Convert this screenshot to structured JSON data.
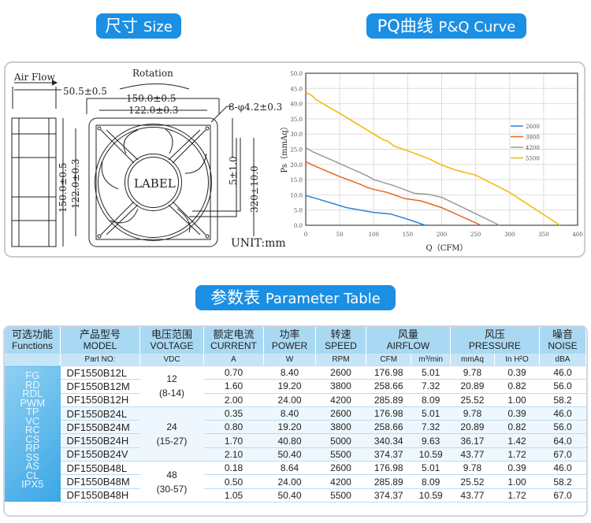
{
  "titles": {
    "size_cn": "尺寸",
    "size_en": "Size",
    "pq_cn": "PQ曲线",
    "pq_en": "P&Q Curve",
    "table_cn": "参数表",
    "table_en": "Parameter Table"
  },
  "drawing": {
    "air_flow": "Air Flow",
    "rotation": "Rotation",
    "depth": "50.5±0.5",
    "width_outer": "150.0±0.5",
    "width_hole": "122.0±0.3",
    "holes": "8-φ4.2±0.3",
    "height_outer": "150.0±0.5",
    "height_hole": "122.0±0.3",
    "strip": "5±1.0",
    "lead": "320±10.0",
    "label": "LABEL",
    "unit": "UNIT:mm"
  },
  "chart_data": {
    "type": "line",
    "xlabel": "Q（CFM）",
    "ylabel": "Ps（mmAq）",
    "xlim": [
      0,
      400
    ],
    "ylim": [
      0,
      50
    ],
    "xticks": [
      "0",
      "50",
      "100",
      "150",
      "200",
      "250",
      "300",
      "350",
      "400"
    ],
    "yticks": [
      "0.0",
      "5.0",
      "10.0",
      "15.0",
      "20.0",
      "25.0",
      "30.0",
      "35.0",
      "40.0",
      "45.0",
      "50.0"
    ],
    "grid": true,
    "legend": "right",
    "series": [
      {
        "name": "2600",
        "color": "#2e7fd6",
        "points": [
          [
            0,
            9.8
          ],
          [
            20,
            8.5
          ],
          [
            60,
            5.8
          ],
          [
            100,
            4.2
          ],
          [
            125,
            3.7
          ],
          [
            150,
            2
          ],
          [
            176,
            0
          ]
        ]
      },
      {
        "name": "3800",
        "color": "#e8661c",
        "points": [
          [
            0,
            20.9
          ],
          [
            10,
            19.8
          ],
          [
            50,
            16
          ],
          [
            80,
            13.5
          ],
          [
            90,
            12.5
          ],
          [
            100,
            11.8
          ],
          [
            120,
            10.8
          ],
          [
            145,
            8.8
          ],
          [
            170,
            8
          ],
          [
            200,
            5.8
          ],
          [
            258,
            0
          ]
        ]
      },
      {
        "name": "4200",
        "color": "#9a9a9a",
        "points": [
          [
            0,
            25.5
          ],
          [
            10,
            24.2
          ],
          [
            50,
            20.3
          ],
          [
            90,
            16.3
          ],
          [
            100,
            15
          ],
          [
            130,
            13
          ],
          [
            160,
            10.5
          ],
          [
            180,
            10.2
          ],
          [
            200,
            9.2
          ],
          [
            250,
            3.8
          ],
          [
            285,
            0
          ]
        ]
      },
      {
        "name": "5500",
        "color": "#f5b800",
        "points": [
          [
            0,
            43.8
          ],
          [
            10,
            42.5
          ],
          [
            15,
            41.3
          ],
          [
            50,
            36.8
          ],
          [
            100,
            30
          ],
          [
            115,
            28
          ],
          [
            120,
            27.8
          ],
          [
            130,
            26
          ],
          [
            150,
            24.5
          ],
          [
            180,
            22
          ],
          [
            200,
            19.8
          ],
          [
            220,
            18.2
          ],
          [
            250,
            16.5
          ],
          [
            300,
            10.8
          ],
          [
            374,
            0
          ]
        ]
      }
    ]
  },
  "table": {
    "headers": [
      [
        "可选功能",
        "Functions"
      ],
      [
        "产品型号",
        "MODEL"
      ],
      [
        "电压范围",
        "VOLTAGE"
      ],
      [
        "额定电流",
        "CURRENT"
      ],
      [
        "功率",
        "POWER"
      ],
      [
        "转速",
        "SPEED"
      ],
      [
        "风量",
        "AIRFLOW"
      ],
      [
        "风压",
        "PRESSURE"
      ],
      [
        "噪音",
        "NOISE"
      ]
    ],
    "units": [
      "Part NO:",
      "VDC",
      "A",
      "W",
      "RPM",
      "CFM",
      "m³/min",
      "mmAq",
      "In H²O",
      "dBA"
    ],
    "functions": [
      "FG",
      "RD",
      "RDL",
      "PWM",
      "TP",
      "VC",
      "RC",
      "CS",
      "RP",
      "SS",
      "AS",
      "CL",
      "IPX5"
    ],
    "voltages": [
      [
        "12",
        "(8-14)"
      ],
      [
        "24",
        "(15-27)"
      ],
      [
        "48",
        "(30-57)"
      ]
    ],
    "rows": [
      [
        "DF1550B12L",
        "0.70",
        "8.40",
        "2600",
        "176.98",
        "5.01",
        "9.78",
        "0.39",
        "46.0"
      ],
      [
        "DF1550B12M",
        "1.60",
        "19.20",
        "3800",
        "258.66",
        "7.32",
        "20.89",
        "0.82",
        "56.0"
      ],
      [
        "DF1550B12H",
        "2.00",
        "24.00",
        "4200",
        "285.89",
        "8.09",
        "25.52",
        "1.00",
        "58.2"
      ],
      [
        "DF1550B24L",
        "0.35",
        "8.40",
        "2600",
        "176.98",
        "5.01",
        "9.78",
        "0.39",
        "46.0"
      ],
      [
        "DF1550B24M",
        "0.80",
        "19.20",
        "3800",
        "258.66",
        "7.32",
        "20.89",
        "0.82",
        "56.0"
      ],
      [
        "DF1550B24H",
        "1.70",
        "40.80",
        "5000",
        "340.34",
        "9.63",
        "36.17",
        "1.42",
        "64.0"
      ],
      [
        "DF1550B24V",
        "2.10",
        "50.40",
        "5500",
        "374.37",
        "10.59",
        "43.77",
        "1.72",
        "67.0"
      ],
      [
        "DF1550B48L",
        "0.18",
        "8.64",
        "2600",
        "176.98",
        "5.01",
        "9.78",
        "0.39",
        "46.0"
      ],
      [
        "DF1550B48M",
        "0.50",
        "24.00",
        "4200",
        "285.89",
        "8.09",
        "25.52",
        "1.00",
        "58.2"
      ],
      [
        "DF1550B48H",
        "1.05",
        "50.40",
        "5500",
        "374.37",
        "10.59",
        "43.77",
        "1.72",
        "67.0"
      ]
    ]
  }
}
